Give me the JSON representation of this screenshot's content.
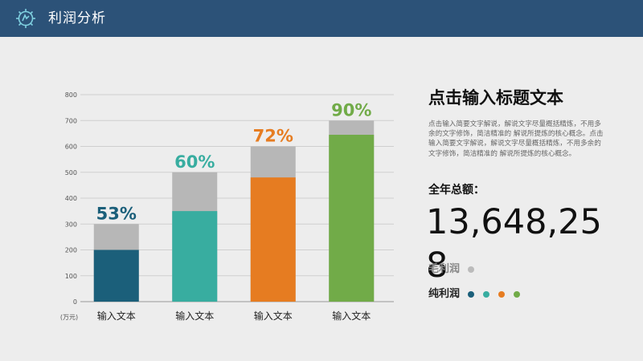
{
  "header": {
    "title": "利润分析"
  },
  "chart_data": {
    "type": "bar",
    "stacked_overlay": true,
    "ylim": [
      0,
      800
    ],
    "y_ticks": [
      0,
      100,
      200,
      300,
      400,
      500,
      600,
      700,
      800
    ],
    "y_unit_label": "(万元)",
    "categories": [
      "输入文本",
      "输入文本",
      "输入文本",
      "输入文本"
    ],
    "series": [
      {
        "values": [
          300,
          500,
          600,
          700
        ],
        "color": "#b7b7b7"
      },
      {
        "values": [
          200,
          350,
          480,
          645
        ],
        "colors": [
          "#1b5f7a",
          "#38ada0",
          "#e67c21",
          "#71ab48"
        ]
      }
    ],
    "data_labels": [
      "53%",
      "60%",
      "72%",
      "90%"
    ],
    "label_colors": [
      "#1b5f7a",
      "#38ada0",
      "#e67c21",
      "#71ab48"
    ],
    "grid": true
  },
  "panel": {
    "title": "点击输入标题文本",
    "description": "点击输入简要文字解说，解说文字尽量概括精炼，不用多余的文字修饰，简洁精准的 解说所提炼的核心概念。点击输入简要文字解说，解说文字尽量概括精炼，不用多余的文字修饰，简洁精准的 解说所提炼的核心概念。",
    "total_label": "全年总额：",
    "total_value": "13,648,258",
    "legend": {
      "gross_label": "毛利润",
      "net_label": "纯利润",
      "gross_dot_color": "#bbbbbb",
      "net_dot_colors": [
        "#1b5f7a",
        "#38ada0",
        "#e67c21",
        "#71ab48"
      ]
    }
  }
}
